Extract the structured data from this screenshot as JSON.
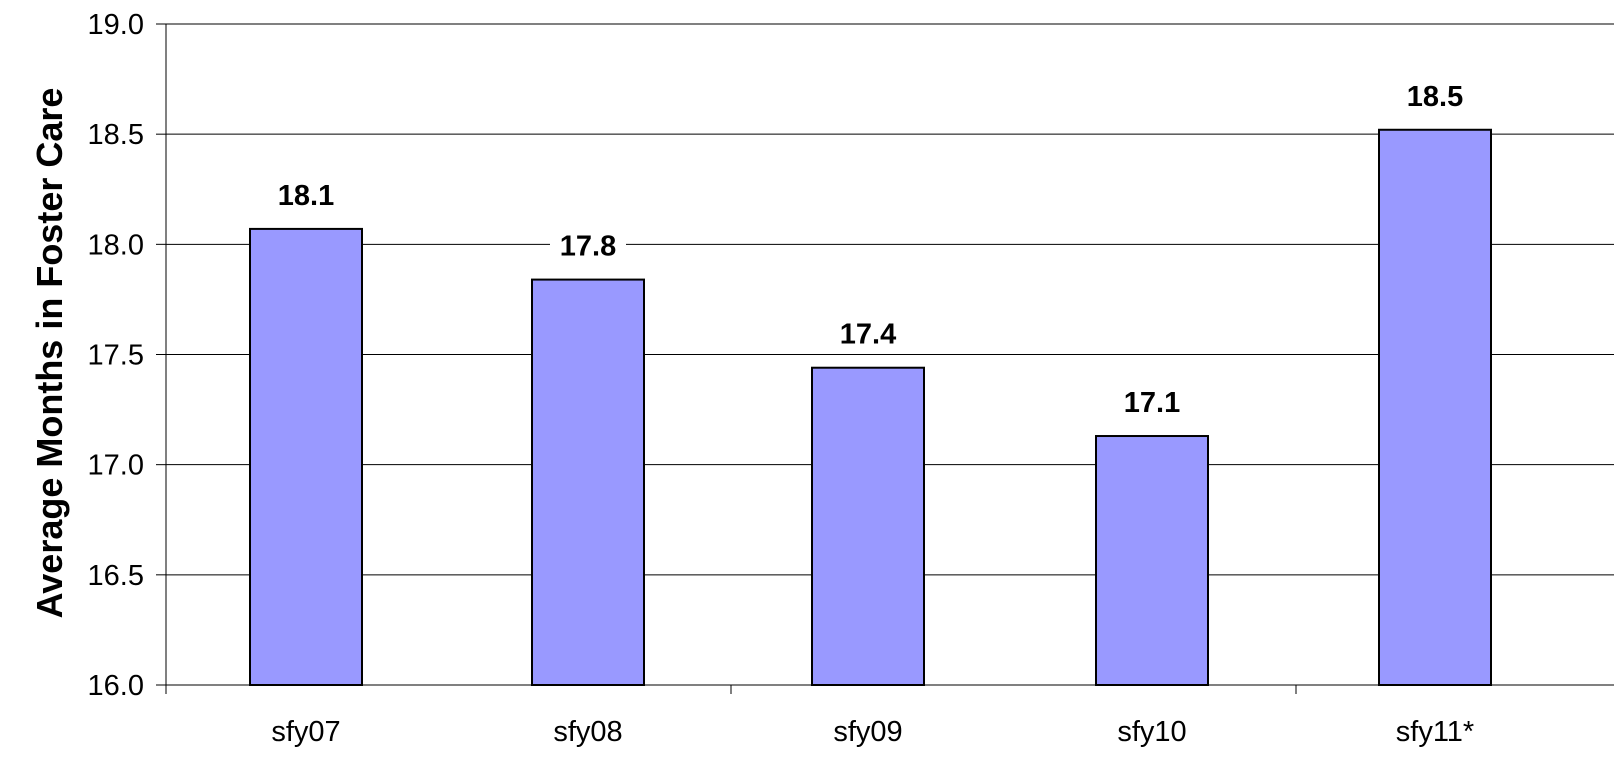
{
  "chart_data": {
    "type": "bar",
    "title": "",
    "xlabel": "",
    "ylabel": "Average Months in Foster Care",
    "categories": [
      "sfy07",
      "sfy08",
      "sfy09",
      "sfy10",
      "sfy11*"
    ],
    "values": [
      18.07,
      17.84,
      17.44,
      17.13,
      18.52
    ],
    "data_labels": [
      "18.1",
      "17.8",
      "17.4",
      "17.1",
      "18.5"
    ],
    "ylim": [
      16.0,
      19.0
    ],
    "y_ticks": [
      "16.0",
      "16.5",
      "17.0",
      "17.5",
      "18.0",
      "18.5",
      "19.0"
    ],
    "grid": true,
    "legend": "none",
    "colors": {
      "bar_fill": "#9999ff",
      "bar_stroke": "#000000",
      "grid": "#000000",
      "axis": "#000000"
    }
  }
}
